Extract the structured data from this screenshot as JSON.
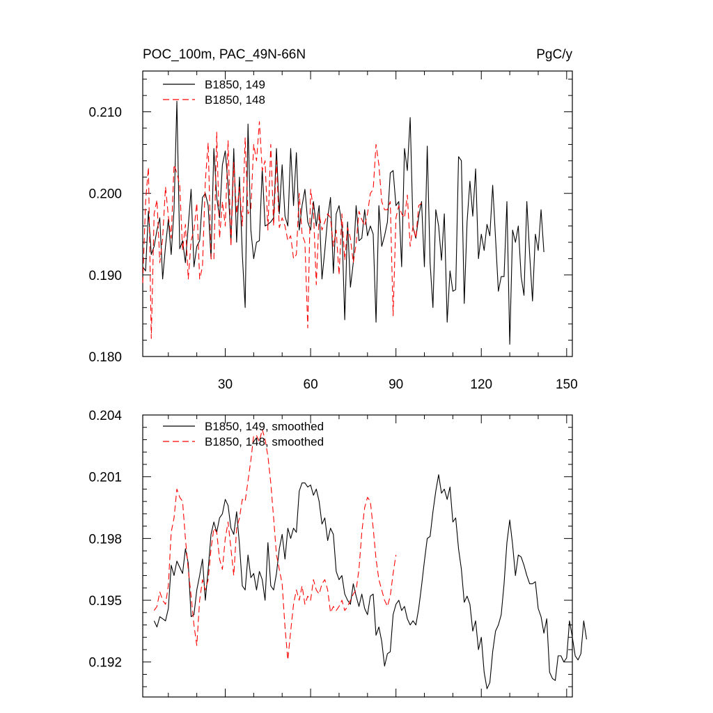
{
  "chart_data": [
    {
      "type": "line",
      "title_left": "POC_100m, PAC_49N-66N",
      "title_right": "PgC/y",
      "xlim": [
        1,
        152
      ],
      "ylim": [
        0.18,
        0.215
      ],
      "x_ticks": [
        30,
        60,
        90,
        120,
        150
      ],
      "x_tick_labels": [
        "30",
        "60",
        "90",
        "120",
        "150"
      ],
      "y_ticks": [
        0.18,
        0.19,
        0.2,
        0.21
      ],
      "y_tick_labels": [
        "0.180",
        "0.190",
        "0.200",
        "0.210"
      ],
      "legend_position": "top-left",
      "series": [
        {
          "name": "B1850, 149",
          "color": "#000000",
          "dash": "solid",
          "x_start": 1,
          "values": [
            0.191,
            0.1905,
            0.1978,
            0.1925,
            0.1935,
            0.1955,
            0.197,
            0.1895,
            0.1935,
            0.1968,
            0.1925,
            0.198,
            0.2113,
            0.1932,
            0.1942,
            0.1915,
            0.196,
            0.2005,
            0.191,
            0.1935,
            0.1942,
            0.1995,
            0.2,
            0.1985,
            0.192,
            0.2055,
            0.1995,
            0.197,
            0.2035,
            0.2052,
            0.201,
            0.194,
            0.2055,
            0.194,
            0.202,
            0.1925,
            0.186,
            0.2085,
            0.1955,
            0.192,
            0.194,
            0.1942,
            0.203,
            0.196,
            0.1962,
            0.1965,
            0.197,
            0.2055,
            0.1975,
            0.2035,
            0.1972,
            0.196,
            0.2055,
            0.1985,
            0.205,
            0.1955,
            0.1985,
            0.2005,
            0.1965,
            0.1955,
            0.199,
            0.196,
            0.1985,
            0.1895,
            0.193,
            0.197,
            0.1995,
            0.1902,
            0.1975,
            0.1985,
            0.196,
            0.1845,
            0.1965,
            0.1885,
            0.1915,
            0.1985,
            0.1942,
            0.1945,
            0.198,
            0.1948,
            0.196,
            0.195,
            0.1842,
            0.1985,
            0.1935,
            0.1948,
            0.1965,
            0.2025,
            0.2028,
            0.1985,
            0.199,
            0.191,
            0.2055,
            0.2028,
            0.2093,
            0.1958,
            0.1945,
            0.1972,
            0.199,
            0.191,
            0.2058,
            0.1915,
            0.186,
            0.198,
            0.196,
            0.1918,
            0.1975,
            0.1842,
            0.1905,
            0.188,
            0.1882,
            0.2045,
            0.204,
            0.1865,
            0.1965,
            0.2015,
            0.1972,
            0.203,
            0.192,
            0.195,
            0.193,
            0.1962,
            0.1948,
            0.201,
            0.1945,
            0.188,
            0.1898,
            0.1898,
            0.199,
            0.1815,
            0.1955,
            0.194,
            0.196,
            0.1898,
            0.1875,
            0.199,
            0.1925,
            0.1868,
            0.195,
            0.193,
            0.198,
            0.1928
          ]
        },
        {
          "name": "B1850, 148",
          "color": "#ff0000",
          "dash": "dashed",
          "x_start": 1,
          "values": [
            0.189,
            0.199,
            0.2032,
            0.1822,
            0.1975,
            0.1992,
            0.1915,
            0.1945,
            0.2008,
            0.1972,
            0.1945,
            0.2035,
            0.2025,
            0.201,
            0.193,
            0.1962,
            0.1895,
            0.1942,
            0.1955,
            0.1988,
            0.1895,
            0.191,
            0.2015,
            0.2062,
            0.192,
            0.1918,
            0.2075,
            0.1945,
            0.199,
            0.196,
            0.2065,
            0.1935,
            0.2038,
            0.1975,
            0.2008,
            0.196,
            0.2068,
            0.1975,
            0.198,
            0.206,
            0.204,
            0.2088,
            0.2028,
            0.204,
            0.1955,
            0.206,
            0.196,
            0.204,
            0.1958,
            0.197,
            0.196,
            0.1942,
            0.1948,
            0.192,
            0.1925,
            0.2,
            0.195,
            0.194,
            0.1835,
            0.2005,
            0.198,
            0.1888,
            0.1975,
            0.1955,
            0.1965,
            0.1975,
            0.197,
            0.1935,
            0.1955,
            0.19,
            0.1975,
            0.1918,
            0.1958,
            0.1945,
            0.1915,
            0.1938,
            0.1978,
            0.1968,
            0.196,
            0.1975,
            0.2,
            0.2005,
            0.206,
            0.2035,
            0.199,
            0.198,
            0.198,
            0.199,
            0.185,
            0.197,
            0.1985,
            0.1975,
            0.197,
            0.1998,
            0.1935,
            0.196,
            0.1945,
            0.1985,
            0.1988
          ]
        }
      ]
    },
    {
      "type": "line",
      "xlim": [
        1,
        152
      ],
      "ylim": [
        0.1903,
        0.204
      ],
      "y_ticks": [
        0.192,
        0.195,
        0.198,
        0.201,
        0.204
      ],
      "y_tick_labels": [
        "0.192",
        "0.195",
        "0.198",
        "0.201",
        "0.204"
      ],
      "legend_position": "top-left",
      "series": [
        {
          "name": "B1850, 149, smoothed",
          "color": "#000000",
          "dash": "solid",
          "x_start": 5,
          "values": [
            0.194,
            0.1937,
            0.1942,
            0.1941,
            0.194,
            0.1946,
            0.1967,
            0.1962,
            0.1969,
            0.1966,
            0.1963,
            0.1975,
            0.1968,
            0.1942,
            0.1943,
            0.1955,
            0.1962,
            0.197,
            0.195,
            0.1965,
            0.1982,
            0.1988,
            0.1983,
            0.199,
            0.1992,
            0.1999,
            0.1996,
            0.1985,
            0.1982,
            0.1993,
            0.1977,
            0.1957,
            0.1955,
            0.1972,
            0.1961,
            0.1963,
            0.1955,
            0.1964,
            0.196,
            0.195,
            0.1978,
            0.1957,
            0.1955,
            0.1963,
            0.1975,
            0.1982,
            0.197,
            0.1985,
            0.198,
            0.1985,
            0.1983,
            0.2003,
            0.2007,
            0.2007,
            0.2005,
            0.2006,
            0.2001,
            0.2004,
            0.1998,
            0.1987,
            0.199,
            0.1979,
            0.1985,
            0.1982,
            0.1964,
            0.196,
            0.1962,
            0.1953,
            0.195,
            0.1948,
            0.1958,
            0.1952,
            0.1947,
            0.1953,
            0.1946,
            0.1943,
            0.1952,
            0.1953,
            0.1933,
            0.1937,
            0.193,
            0.1918,
            0.1924,
            0.1925,
            0.1943,
            0.1948,
            0.195,
            0.1945,
            0.1947,
            0.1941,
            0.1938,
            0.194,
            0.1938,
            0.1946,
            0.1957,
            0.1969,
            0.198,
            0.1981,
            0.1993,
            0.2003,
            0.2011,
            0.2002,
            0.2004,
            0.1999,
            0.2005,
            0.1988,
            0.199,
            0.1975,
            0.1965,
            0.1949,
            0.1952,
            0.1948,
            0.1935,
            0.194,
            0.1926,
            0.1932,
            0.1915,
            0.1907,
            0.191,
            0.1925,
            0.1935,
            0.1938,
            0.1943,
            0.1958,
            0.1978,
            0.1989,
            0.1977,
            0.1962,
            0.1972,
            0.1971,
            0.1967,
            0.1962,
            0.1958,
            0.1958,
            0.1959,
            0.1946,
            0.1942,
            0.1934,
            0.1941,
            0.1915,
            0.1912,
            0.1911,
            0.1923,
            0.1923,
            0.192,
            0.1922,
            0.194,
            0.1932,
            0.1923,
            0.1921,
            0.1924,
            0.194,
            0.1931
          ]
        },
        {
          "name": "B1850, 148, smoothed",
          "color": "#ff0000",
          "dash": "dashed",
          "x_start": 5,
          "values": [
            0.1945,
            0.1947,
            0.1954,
            0.195,
            0.1948,
            0.1957,
            0.1983,
            0.199,
            0.2004,
            0.2,
            0.1998,
            0.198,
            0.1965,
            0.1952,
            0.1938,
            0.1928,
            0.195,
            0.196,
            0.1955,
            0.196,
            0.1975,
            0.1985,
            0.1983,
            0.197,
            0.1965,
            0.198,
            0.1988,
            0.1975,
            0.1962,
            0.1985,
            0.199,
            0.1999,
            0.1998,
            0.2008,
            0.2018,
            0.203,
            0.203,
            0.2027,
            0.2033,
            0.2028,
            0.202,
            0.2007,
            0.199,
            0.1972,
            0.1965,
            0.1958,
            0.1937,
            0.1921,
            0.1935,
            0.1948,
            0.1955,
            0.195,
            0.1957,
            0.1948,
            0.1952,
            0.195,
            0.196,
            0.1955,
            0.1953,
            0.1958,
            0.196,
            0.1955,
            0.1944,
            0.1947,
            0.1945,
            0.1947,
            0.195,
            0.1945,
            0.1947,
            0.195,
            0.1953,
            0.1955,
            0.1965,
            0.1983,
            0.1995,
            0.2,
            0.1998,
            0.1985,
            0.197,
            0.196,
            0.1955,
            0.195,
            0.1947,
            0.1952,
            0.1963,
            0.1972
          ]
        }
      ]
    }
  ]
}
